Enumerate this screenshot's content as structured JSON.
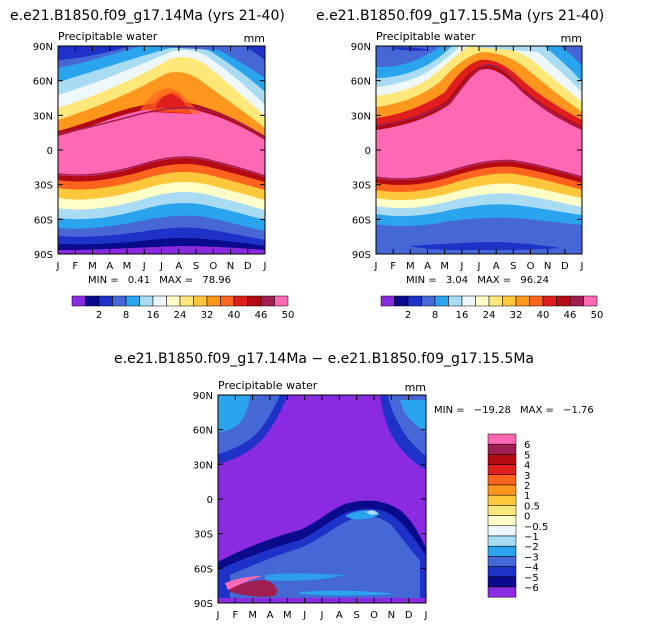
{
  "colors": {
    "scale": [
      "#8a2be2",
      "#0a0a8c",
      "#1e32c8",
      "#4668d6",
      "#2ba4ee",
      "#a9dcf2",
      "#eef7fb",
      "#ffffc8",
      "#ffe87a",
      "#ffc83c",
      "#ff961e",
      "#ff641e",
      "#e11e1e",
      "#b40a14",
      "#a01e50",
      "#ff69b4"
    ],
    "diff": [
      "#8a2be2",
      "#0a0a8c",
      "#1e32c8",
      "#4668d6",
      "#2ba4ee",
      "#a9dcf2",
      "#eef7fb",
      "#ffffc8",
      "#ffe87a",
      "#ffc83c",
      "#ff961e",
      "#ff641e",
      "#e11e1e",
      "#b40a14",
      "#a01e50",
      "#ff69b4"
    ]
  },
  "chart_data": [
    {
      "type": "heatmap",
      "title": "e.e21.B1850.f09_g17.14Ma (yrs 21-40)",
      "subtitle": "Precipitable water",
      "unit": "mm",
      "x_ticks": [
        "J",
        "F",
        "M",
        "A",
        "M",
        "J",
        "J",
        "A",
        "S",
        "O",
        "N",
        "D",
        "J"
      ],
      "y_ticks": [
        "90N",
        "60N",
        "30N",
        "0",
        "30S",
        "60S",
        "90S"
      ],
      "stats": {
        "min_label": "MIN =",
        "min": "0.41",
        "max_label": "MAX =",
        "max": "78.96"
      },
      "levels": [
        "2",
        "8",
        "16",
        "24",
        "32",
        "40",
        "46",
        "50"
      ]
    },
    {
      "type": "heatmap",
      "title": "e.e21.B1850.f09_g17.15.5Ma (yrs 21-40)",
      "subtitle": "Precipitable water",
      "unit": "mm",
      "x_ticks": [
        "J",
        "F",
        "M",
        "A",
        "M",
        "J",
        "J",
        "A",
        "S",
        "O",
        "N",
        "D",
        "J"
      ],
      "y_ticks": [
        "90N",
        "60N",
        "30N",
        "0",
        "30S",
        "60S",
        "90S"
      ],
      "stats": {
        "min_label": "MIN =",
        "min": "3.04",
        "max_label": "MAX =",
        "max": "96.24"
      },
      "levels": [
        "2",
        "8",
        "16",
        "24",
        "32",
        "40",
        "46",
        "50"
      ]
    },
    {
      "type": "heatmap",
      "title": "e.e21.B1850.f09_g17.14Ma − e.e21.B1850.f09_g17.15.5Ma",
      "subtitle": "Precipitable water",
      "unit": "mm",
      "x_ticks": [
        "J",
        "F",
        "M",
        "A",
        "M",
        "J",
        "J",
        "A",
        "S",
        "O",
        "N",
        "D",
        "J"
      ],
      "y_ticks": [
        "90N",
        "60N",
        "30N",
        "0",
        "30S",
        "60S",
        "90S"
      ],
      "stats": {
        "min_label": "MIN =",
        "min": "−19.28",
        "max_label": "MAX =",
        "max": "−1.76"
      },
      "levels": [
        "6",
        "5",
        "4",
        "3",
        "2",
        "1",
        "0.5",
        "0",
        "−0.5",
        "−1",
        "−2",
        "−3",
        "−4",
        "−5",
        "−6"
      ]
    }
  ]
}
